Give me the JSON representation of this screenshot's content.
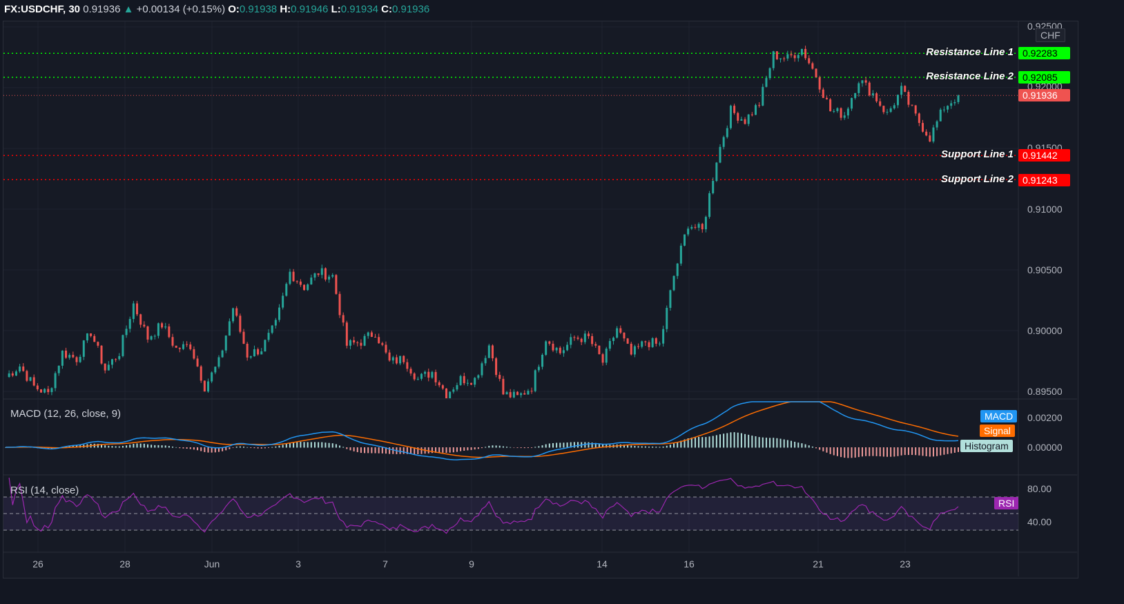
{
  "header": {
    "symbol": "FX:USDCHF, 30",
    "last": "0.91936",
    "change": "+0.00134 (+0.15%)",
    "o_label": "O:",
    "o": "0.91938",
    "h_label": "H:",
    "h": "0.91946",
    "l_label": "L:",
    "l": "0.91934",
    "c_label": "C:",
    "c": "0.91936"
  },
  "currency": "CHF",
  "levels": [
    {
      "name": "Resistance Line 1",
      "value": "0.92283",
      "color": "#00ff00"
    },
    {
      "name": "Resistance Line 2",
      "value": "0.92085",
      "color": "#00ff00"
    },
    {
      "name": "Support Line 1",
      "value": "0.91442",
      "color": "#ff0000"
    },
    {
      "name": "Support Line 2",
      "value": "0.91243",
      "color": "#ff0000"
    }
  ],
  "current_price": {
    "value": "0.91936",
    "color": "#ef5350"
  },
  "price_ticks": [
    "0.92500",
    "0.92000",
    "0.91500",
    "0.91000",
    "0.90500",
    "0.90000",
    "0.89500"
  ],
  "macd": {
    "title": "MACD (12, 26, close, 9)",
    "ticks": [
      "0.00200",
      "0.00000"
    ],
    "legend": [
      "MACD",
      "Signal",
      "Histogram"
    ],
    "colors": [
      "#2196f3",
      "#ff6d00",
      "#b2dfdb"
    ]
  },
  "rsi": {
    "title": "RSI (14, close)",
    "ticks": [
      "80.00",
      "40.00"
    ],
    "legend": "RSI",
    "color": "#9c27b0",
    "bands": [
      70,
      50,
      30
    ]
  },
  "x_ticks": [
    "26",
    "28",
    "Jun",
    "3",
    "7",
    "9",
    "14",
    "16",
    "21",
    "23"
  ],
  "chart_data": {
    "type": "candlestick",
    "symbol": "FX:USDCHF",
    "interval": "30",
    "ylim": [
      0.8945,
      0.9255
    ],
    "close_path": [
      0.8962,
      0.8971,
      0.8954,
      0.8948,
      0.8982,
      0.8977,
      0.8999,
      0.8968,
      0.8982,
      0.9022,
      0.8994,
      0.9005,
      0.8985,
      0.8988,
      0.8954,
      0.8974,
      0.9019,
      0.898,
      0.8985,
      0.9005,
      0.9048,
      0.9036,
      0.9048,
      0.9045,
      0.8988,
      0.8991,
      0.8999,
      0.8974,
      0.8977,
      0.896,
      0.8966,
      0.8948,
      0.896,
      0.896,
      0.8988,
      0.8948,
      0.8945,
      0.8954,
      0.8994,
      0.8982,
      0.8994,
      0.8994,
      0.8974,
      0.9002,
      0.898,
      0.8991,
      0.8988,
      0.9045,
      0.9088,
      0.9082,
      0.9141,
      0.9181,
      0.9173,
      0.9187,
      0.9227,
      0.9224,
      0.9232,
      0.921,
      0.9181,
      0.9178,
      0.9207,
      0.9195,
      0.9178,
      0.9198,
      0.9176,
      0.9159,
      0.9184,
      0.91936
    ]
  }
}
